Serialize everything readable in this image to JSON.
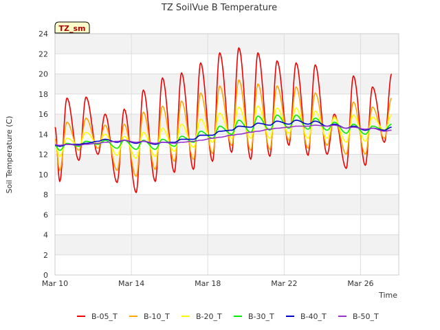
{
  "chart_data": {
    "type": "line",
    "title": "TZ SoilVue B Temperature",
    "xlabel": "Time",
    "ylabel": "Soil Temperature (C)",
    "badge": "TZ_sm",
    "ylim": [
      0,
      24
    ],
    "yticks": [
      0,
      2,
      4,
      6,
      8,
      10,
      12,
      14,
      16,
      18,
      20,
      22,
      24
    ],
    "xlim": [
      "2024-03-10",
      "2024-03-28"
    ],
    "xticks": [
      {
        "label": "Mar 10",
        "date": "2024-03-10"
      },
      {
        "label": "Mar 14",
        "date": "2024-03-14"
      },
      {
        "label": "Mar 18",
        "date": "2024-03-18"
      },
      {
        "label": "Mar 22",
        "date": "2024-03-22"
      },
      {
        "label": "Mar 26",
        "date": "2024-03-26"
      }
    ],
    "x": [
      "2024-03-10",
      "2024-03-11",
      "2024-03-12",
      "2024-03-13",
      "2024-03-14",
      "2024-03-15",
      "2024-03-16",
      "2024-03-17",
      "2024-03-18",
      "2024-03-19",
      "2024-03-20",
      "2024-03-21",
      "2024-03-22",
      "2024-03-23",
      "2024-03-24",
      "2024-03-25",
      "2024-03-26",
      "2024-03-27"
    ],
    "grid": true,
    "legend_position": "bottom",
    "series": [
      {
        "name": "B-05_T",
        "color": "#ee0000",
        "daily_min": [
          9.3,
          11.4,
          12.0,
          9.2,
          8.2,
          9.3,
          10.2,
          10.5,
          11.3,
          12.2,
          11.5,
          11.8,
          12.9,
          11.9,
          12.0,
          10.6,
          10.9,
          13.2
        ],
        "daily_max": [
          17.6,
          17.7,
          16.0,
          16.5,
          18.4,
          19.6,
          20.1,
          21.1,
          22.1,
          22.6,
          22.1,
          21.3,
          21.1,
          20.9,
          16.0,
          19.8,
          18.7,
          20.0
        ]
      },
      {
        "name": "B-10_T",
        "color": "#ffa500",
        "daily_min": [
          10.4,
          12.4,
          12.6,
          10.4,
          9.8,
          10.5,
          11.3,
          11.5,
          12.1,
          12.9,
          12.4,
          12.5,
          13.4,
          12.6,
          12.9,
          12.0,
          12.0,
          13.6
        ],
        "daily_max": [
          15.2,
          15.6,
          14.9,
          15.0,
          16.2,
          16.8,
          17.3,
          18.1,
          18.8,
          19.4,
          19.0,
          18.8,
          18.7,
          18.1,
          15.8,
          17.2,
          16.7,
          17.6
        ]
      },
      {
        "name": "B-20_T",
        "color": "#ffff00",
        "daily_min": [
          11.8,
          12.9,
          13.0,
          11.9,
          11.6,
          11.8,
          12.3,
          12.7,
          13.2,
          13.6,
          13.6,
          13.6,
          14.1,
          13.6,
          13.6,
          13.2,
          13.3,
          14.4
        ],
        "daily_max": [
          13.6,
          14.2,
          14.0,
          13.8,
          14.2,
          14.6,
          15.0,
          15.5,
          16.1,
          16.7,
          16.8,
          16.6,
          16.6,
          16.3,
          15.6,
          15.9,
          15.7,
          15.9
        ]
      },
      {
        "name": "B-30_T",
        "color": "#00ee00",
        "daily_min": [
          12.4,
          12.8,
          13.0,
          12.6,
          12.5,
          12.5,
          12.8,
          13.2,
          13.6,
          14.0,
          14.2,
          14.4,
          14.6,
          14.5,
          14.4,
          14.1,
          14.0,
          14.4
        ],
        "daily_max": [
          13.1,
          13.3,
          13.4,
          13.4,
          13.4,
          13.5,
          13.8,
          14.3,
          14.8,
          15.4,
          15.8,
          15.9,
          15.9,
          15.6,
          15.2,
          15.0,
          14.8,
          15.0
        ]
      },
      {
        "name": "B-40_T",
        "color": "#0000cc",
        "daily_min": [
          12.8,
          13.0,
          13.3,
          13.2,
          13.1,
          13.0,
          13.2,
          13.5,
          13.9,
          14.4,
          14.7,
          14.9,
          15.0,
          15.0,
          14.8,
          14.6,
          14.4,
          14.4
        ],
        "daily_max": [
          13.0,
          13.1,
          13.5,
          13.4,
          13.3,
          13.2,
          13.5,
          13.9,
          14.3,
          14.8,
          15.1,
          15.3,
          15.4,
          15.3,
          15.0,
          14.8,
          14.6,
          14.7
        ]
      },
      {
        "name": "B-50_T",
        "color": "#9932cc",
        "daily_min": [
          12.9,
          12.9,
          13.1,
          13.3,
          13.2,
          13.1,
          13.1,
          13.3,
          13.6,
          13.9,
          14.2,
          14.5,
          14.7,
          14.8,
          14.8,
          14.6,
          14.5,
          14.3
        ],
        "daily_max": [
          13.0,
          13.0,
          13.2,
          13.4,
          13.3,
          13.2,
          13.2,
          13.4,
          13.7,
          14.0,
          14.3,
          14.6,
          14.8,
          14.9,
          14.9,
          14.7,
          14.6,
          14.4
        ]
      }
    ]
  }
}
